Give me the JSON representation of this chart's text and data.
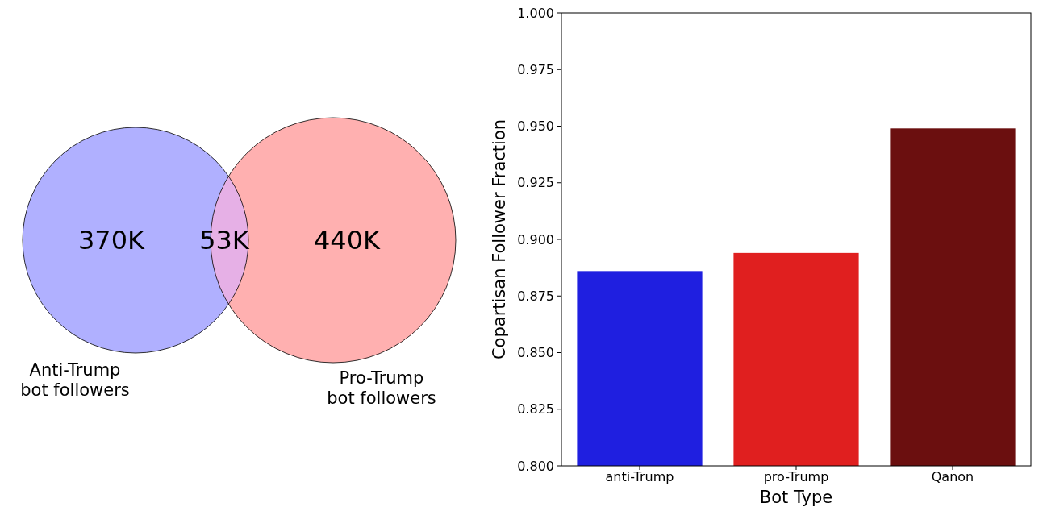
{
  "chart_data": [
    {
      "type": "other",
      "categories": [
        null,
        null,
        null
      ],
      "annotations": [
        "Anti-Trump\nbot followers",
        "Pro-Trump\nbot followers"
      ],
      "colors": [
        "#b0b0ff",
        "#ffb0b0",
        "#e6b0e6"
      ],
      "values": [
        370,
        53,
        440
      ],
      "value_labels": [
        "370K",
        "53K",
        "440K"
      ]
    },
    {
      "type": "bar",
      "xlabel": "Bot Type",
      "ylabel": "Copartisan Follower Fraction",
      "categories": [
        "anti-Trump",
        "pro-Trump",
        "Qanon"
      ],
      "values": [
        0.886,
        0.894,
        0.949
      ],
      "colors": [
        "#1f1fe0",
        "#e01f1f",
        "#6b0f0f"
      ],
      "ylim": [
        0.8,
        1.0
      ],
      "yticks": [
        {
          "value": 0.8,
          "label": "0.800"
        },
        {
          "value": 0.825,
          "label": "0.825"
        },
        {
          "value": 0.85,
          "label": "0.850"
        },
        {
          "value": 0.875,
          "label": "0.875"
        },
        {
          "value": 0.9,
          "label": "0.900"
        },
        {
          "value": 0.925,
          "label": "0.925"
        },
        {
          "value": 0.95,
          "label": "0.950"
        },
        {
          "value": 0.975,
          "label": "0.975"
        },
        {
          "value": 1.0,
          "label": "1.000"
        }
      ],
      "grid": false
    }
  ]
}
